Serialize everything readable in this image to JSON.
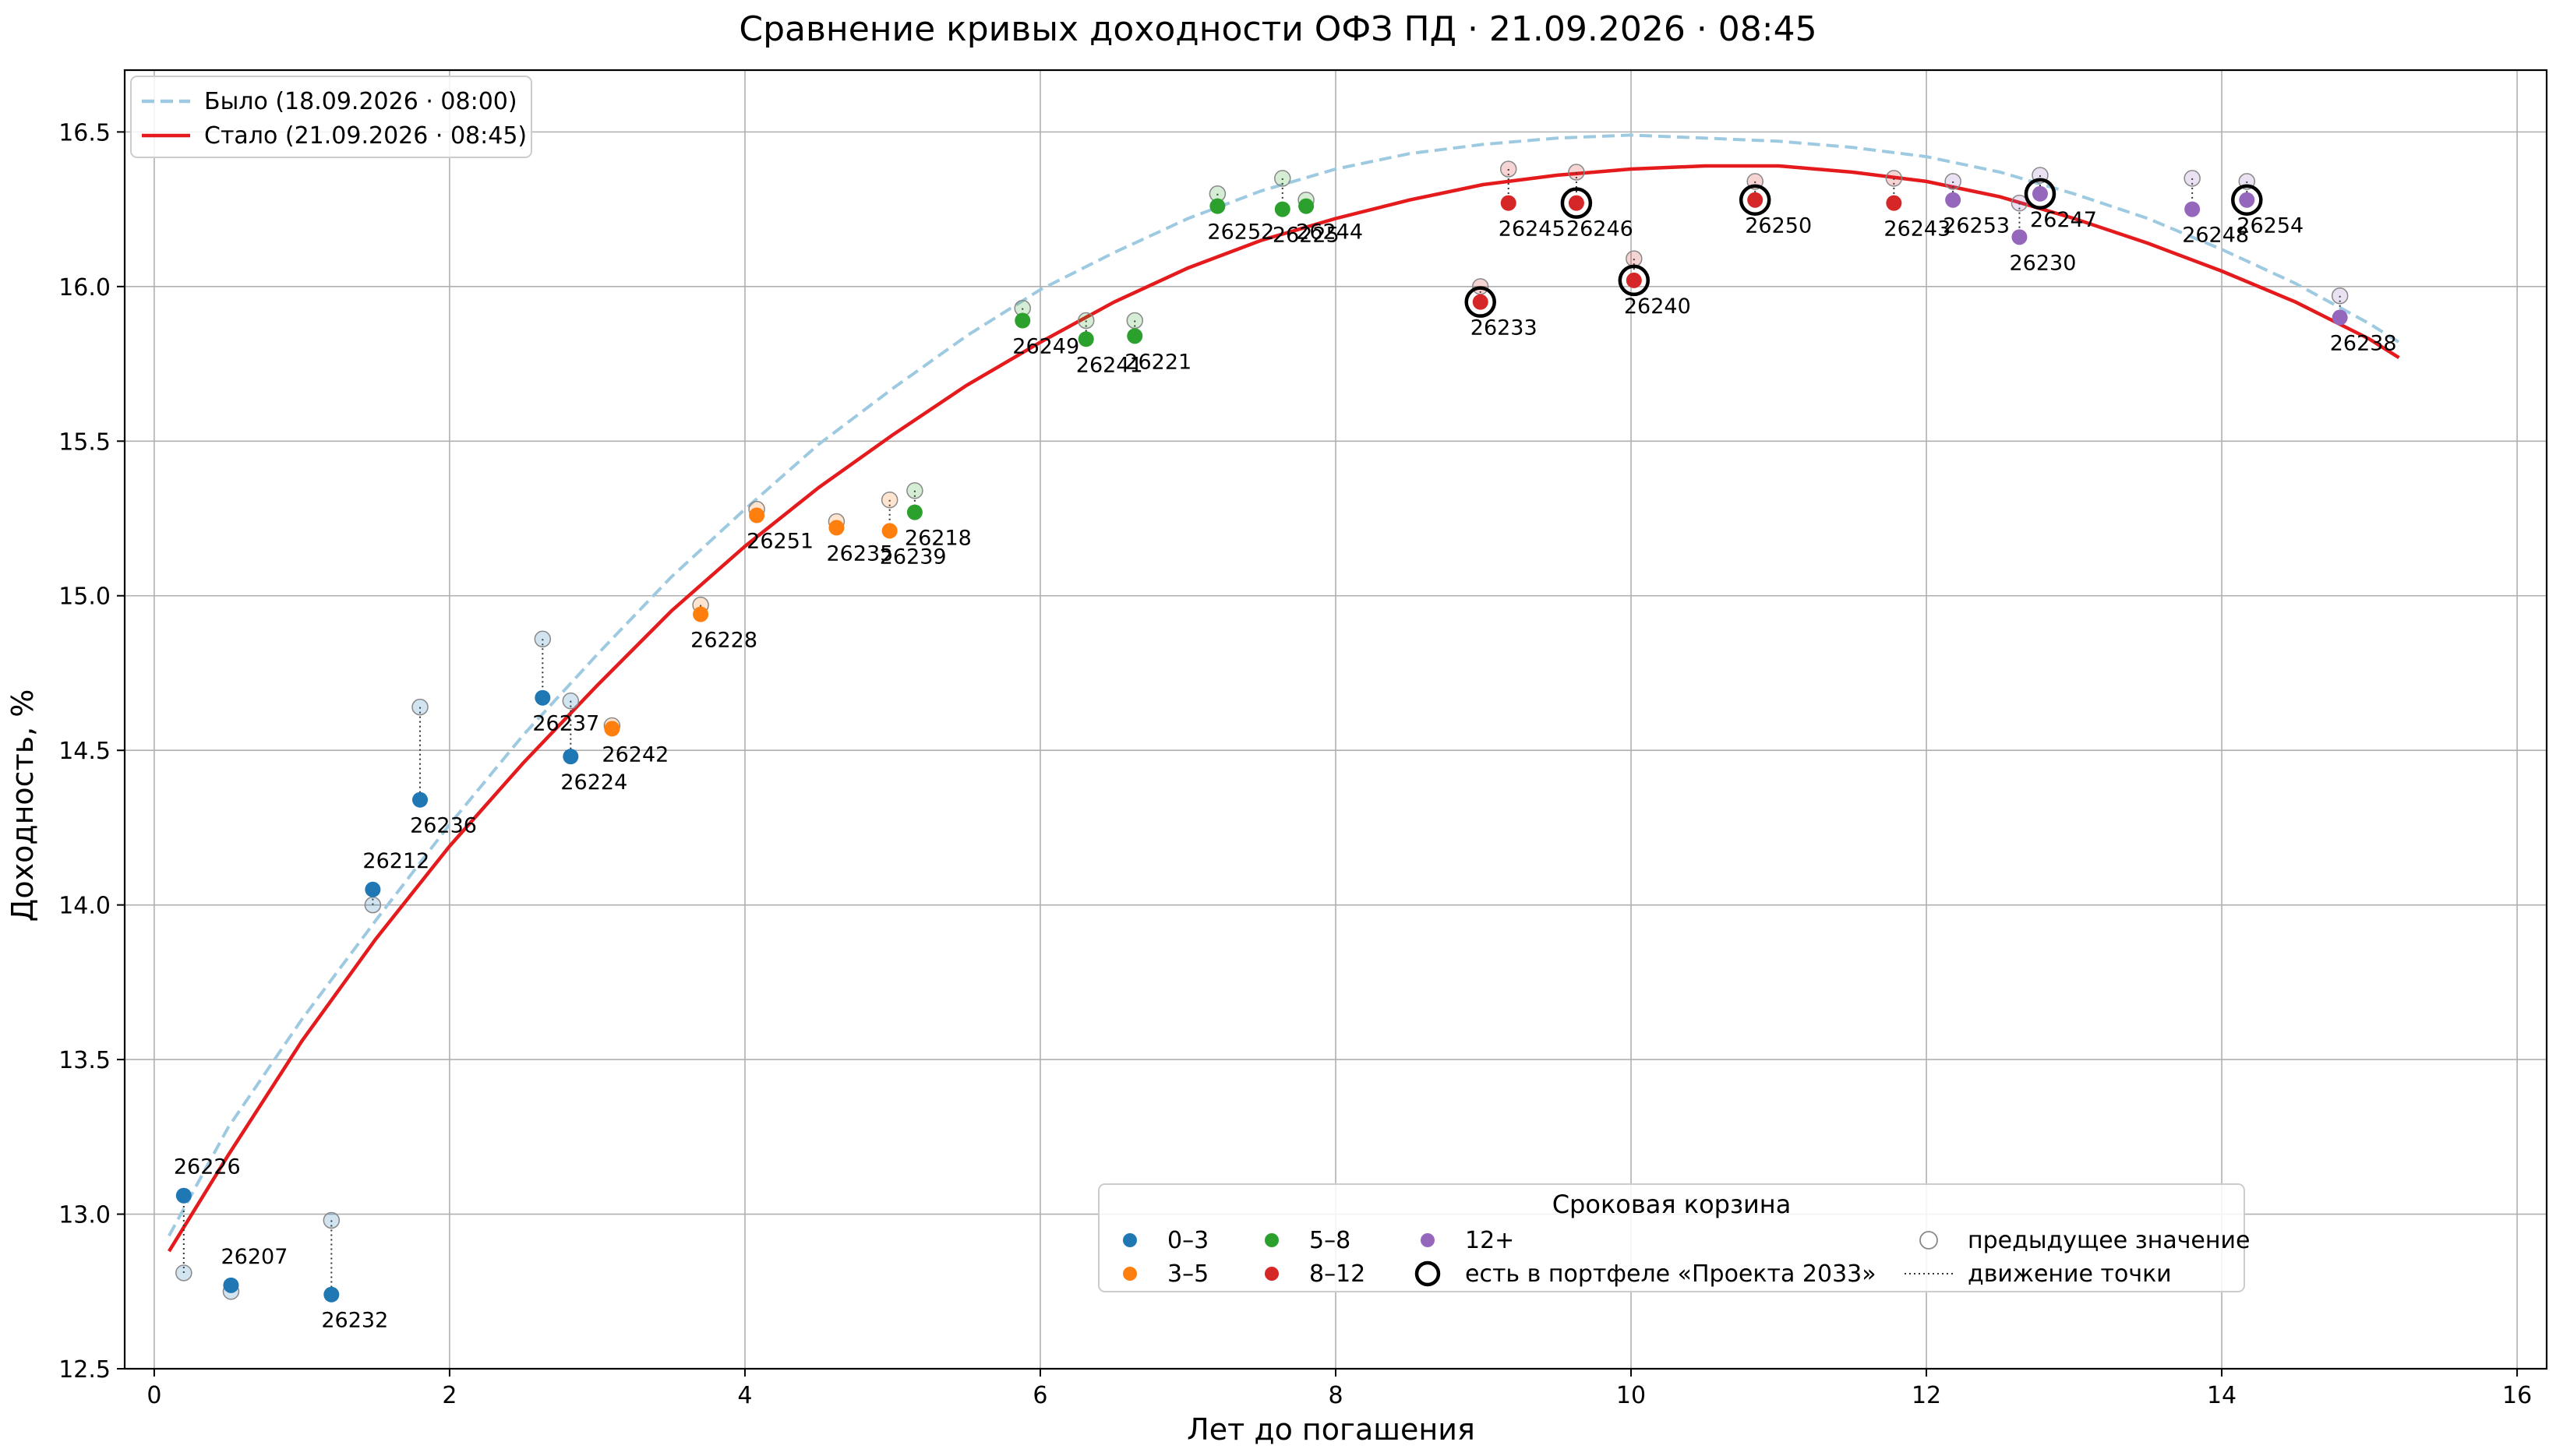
{
  "chart_data": {
    "type": "scatter",
    "title": "Сравнение кривых доходности ОФЗ ПД · 21.09.2026 · 08:45",
    "xlabel": "Лет до погашения",
    "ylabel": "Доходность, %",
    "xlim": [
      -0.2,
      16.2
    ],
    "ylim": [
      12.5,
      16.7
    ],
    "xticks": [
      "0",
      "2",
      "4",
      "6",
      "8",
      "10",
      "12",
      "14",
      "16"
    ],
    "yticks": [
      "12.5",
      "13.0",
      "13.5",
      "14.0",
      "14.5",
      "15.0",
      "15.5",
      "16.0",
      "16.5"
    ],
    "grid": true,
    "curves": [
      {
        "name": "Было (18.09.2026 · 08:00)",
        "style": "dashed",
        "color": "#9ecae1",
        "x": [
          0.1,
          0.5,
          1.0,
          1.5,
          2.0,
          2.5,
          3.0,
          3.5,
          4.0,
          4.5,
          5.0,
          5.5,
          6.0,
          6.5,
          7.0,
          7.5,
          8.0,
          8.5,
          9.0,
          9.5,
          10.0,
          10.5,
          11.0,
          11.5,
          12.0,
          12.5,
          13.0,
          13.5,
          14.0,
          14.5,
          15.0,
          15.2
        ],
        "y": [
          12.93,
          13.28,
          13.63,
          13.95,
          14.26,
          14.55,
          14.81,
          15.06,
          15.28,
          15.49,
          15.67,
          15.84,
          15.99,
          16.11,
          16.22,
          16.31,
          16.38,
          16.43,
          16.46,
          16.48,
          16.49,
          16.48,
          16.47,
          16.45,
          16.42,
          16.37,
          16.3,
          16.22,
          16.12,
          16.01,
          15.88,
          15.82
        ]
      },
      {
        "name": "Стало (21.09.2026 · 08:45)",
        "style": "solid",
        "color": "#e41a1c",
        "x": [
          0.1,
          0.5,
          1.0,
          1.5,
          2.0,
          2.5,
          3.0,
          3.5,
          4.0,
          4.5,
          5.0,
          5.5,
          6.0,
          6.5,
          7.0,
          7.5,
          8.0,
          8.5,
          9.0,
          9.5,
          10.0,
          10.5,
          11.0,
          11.5,
          12.0,
          12.5,
          13.0,
          13.5,
          14.0,
          14.5,
          15.0,
          15.2
        ],
        "y": [
          12.88,
          13.19,
          13.56,
          13.89,
          14.19,
          14.46,
          14.71,
          14.95,
          15.16,
          15.35,
          15.52,
          15.68,
          15.82,
          15.95,
          16.06,
          16.15,
          16.22,
          16.28,
          16.33,
          16.36,
          16.38,
          16.39,
          16.39,
          16.37,
          16.34,
          16.29,
          16.22,
          16.14,
          16.05,
          15.95,
          15.83,
          15.77
        ]
      }
    ],
    "buckets": [
      {
        "name": "0–3",
        "color": "#1f77b4"
      },
      {
        "name": "3–5",
        "color": "#ff7f0e"
      },
      {
        "name": "5–8",
        "color": "#2ca02c"
      },
      {
        "name": "8–12",
        "color": "#d62728"
      },
      {
        "name": "12+",
        "color": "#9467bd"
      }
    ],
    "points": [
      {
        "code": "26226",
        "x": 0.2,
        "y": 13.06,
        "prev": 12.81,
        "bucket": "0–3",
        "portfolio": false
      },
      {
        "code": "26207",
        "x": 0.52,
        "y": 12.77,
        "prev": 12.75,
        "bucket": "0–3",
        "portfolio": false
      },
      {
        "code": "26232",
        "x": 1.2,
        "y": 12.74,
        "prev": 12.98,
        "bucket": "0–3",
        "portfolio": false
      },
      {
        "code": "26212",
        "x": 1.48,
        "y": 14.05,
        "prev": 14.0,
        "bucket": "0–3",
        "portfolio": false
      },
      {
        "code": "26236",
        "x": 1.8,
        "y": 14.34,
        "prev": 14.64,
        "bucket": "0–3",
        "portfolio": false
      },
      {
        "code": "26237",
        "x": 2.63,
        "y": 14.67,
        "prev": 14.86,
        "bucket": "0–3",
        "portfolio": false
      },
      {
        "code": "26224",
        "x": 2.82,
        "y": 14.48,
        "prev": 14.66,
        "bucket": "0–3",
        "portfolio": false
      },
      {
        "code": "26242",
        "x": 3.1,
        "y": 14.57,
        "prev": 14.58,
        "bucket": "3–5",
        "portfolio": false
      },
      {
        "code": "26228",
        "x": 3.7,
        "y": 14.94,
        "prev": 14.97,
        "bucket": "3–5",
        "portfolio": false
      },
      {
        "code": "26251",
        "x": 4.08,
        "y": 15.26,
        "prev": 15.28,
        "bucket": "3–5",
        "portfolio": false
      },
      {
        "code": "26235",
        "x": 4.62,
        "y": 15.22,
        "prev": 15.24,
        "bucket": "3–5",
        "portfolio": false
      },
      {
        "code": "26239",
        "x": 4.98,
        "y": 15.21,
        "prev": 15.31,
        "bucket": "3–5",
        "portfolio": false
      },
      {
        "code": "26218",
        "x": 5.15,
        "y": 15.27,
        "prev": 15.34,
        "bucket": "5–8",
        "portfolio": false
      },
      {
        "code": "26249",
        "x": 5.88,
        "y": 15.89,
        "prev": 15.93,
        "bucket": "5–8",
        "portfolio": false
      },
      {
        "code": "26241",
        "x": 6.31,
        "y": 15.83,
        "prev": 15.89,
        "bucket": "5–8",
        "portfolio": false
      },
      {
        "code": "26221",
        "x": 6.64,
        "y": 15.84,
        "prev": 15.89,
        "bucket": "5–8",
        "portfolio": false
      },
      {
        "code": "26252",
        "x": 7.2,
        "y": 16.26,
        "prev": 16.3,
        "bucket": "5–8",
        "portfolio": false
      },
      {
        "code": "26225",
        "x": 7.64,
        "y": 16.25,
        "prev": 16.35,
        "bucket": "5–8",
        "portfolio": false
      },
      {
        "code": "26244",
        "x": 7.8,
        "y": 16.26,
        "prev": 16.28,
        "bucket": "5–8",
        "portfolio": false
      },
      {
        "code": "26233",
        "x": 8.98,
        "y": 15.95,
        "prev": 16.0,
        "bucket": "8–12",
        "portfolio": true
      },
      {
        "code": "26245",
        "x": 9.17,
        "y": 16.27,
        "prev": 16.38,
        "bucket": "8–12",
        "portfolio": false
      },
      {
        "code": "26246",
        "x": 9.63,
        "y": 16.27,
        "prev": 16.37,
        "bucket": "8–12",
        "portfolio": true
      },
      {
        "code": "26240",
        "x": 10.02,
        "y": 16.02,
        "prev": 16.09,
        "bucket": "8–12",
        "portfolio": true
      },
      {
        "code": "26250",
        "x": 10.84,
        "y": 16.28,
        "prev": 16.34,
        "bucket": "8–12",
        "portfolio": true
      },
      {
        "code": "26243",
        "x": 11.78,
        "y": 16.27,
        "prev": 16.35,
        "bucket": "8–12",
        "portfolio": false
      },
      {
        "code": "26253",
        "x": 12.18,
        "y": 16.28,
        "prev": 16.34,
        "bucket": "12+",
        "portfolio": false
      },
      {
        "code": "26230",
        "x": 12.63,
        "y": 16.16,
        "prev": 16.27,
        "bucket": "12+",
        "portfolio": false
      },
      {
        "code": "26247",
        "x": 12.77,
        "y": 16.3,
        "prev": 16.36,
        "bucket": "12+",
        "portfolio": true
      },
      {
        "code": "26248",
        "x": 13.8,
        "y": 16.25,
        "prev": 16.35,
        "bucket": "12+",
        "portfolio": false
      },
      {
        "code": "26254",
        "x": 14.17,
        "y": 16.28,
        "prev": 16.34,
        "bucket": "12+",
        "portfolio": true
      },
      {
        "code": "26238",
        "x": 14.8,
        "y": 15.9,
        "prev": 15.97,
        "bucket": "12+",
        "portfolio": false
      }
    ],
    "legend_curves": {
      "placement": "top-left"
    },
    "legend_buckets": {
      "placement": "bottom-center",
      "title": "Сроковая корзина",
      "portfolio_label": "есть в портфеле «Проекта 2033»",
      "prev_label": "предыдущее значение",
      "move_label": "движение точки"
    }
  }
}
